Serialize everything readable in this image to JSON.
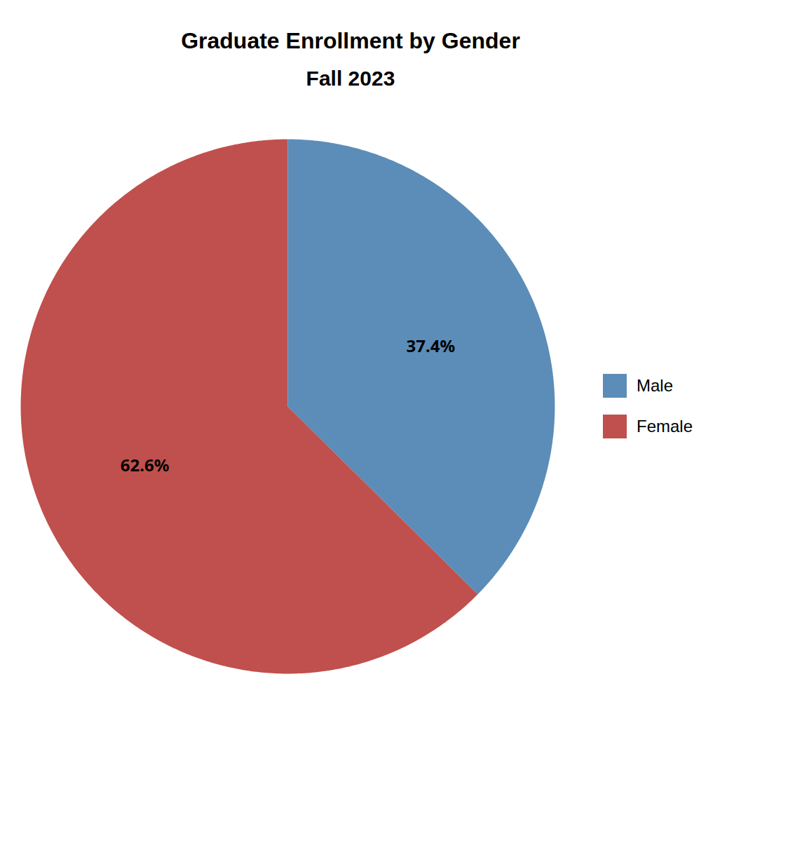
{
  "chart_data": {
    "type": "pie",
    "title": "Graduate Enrollment by Gender",
    "subtitle": "Fall 2023",
    "categories": [
      "Male",
      "Female"
    ],
    "values": [
      37.4,
      62.6
    ],
    "value_labels": [
      "37.4%",
      "62.6%"
    ],
    "colors": [
      "#5b8db8",
      "#c0504d"
    ],
    "data_labels": true,
    "legend": "right"
  }
}
